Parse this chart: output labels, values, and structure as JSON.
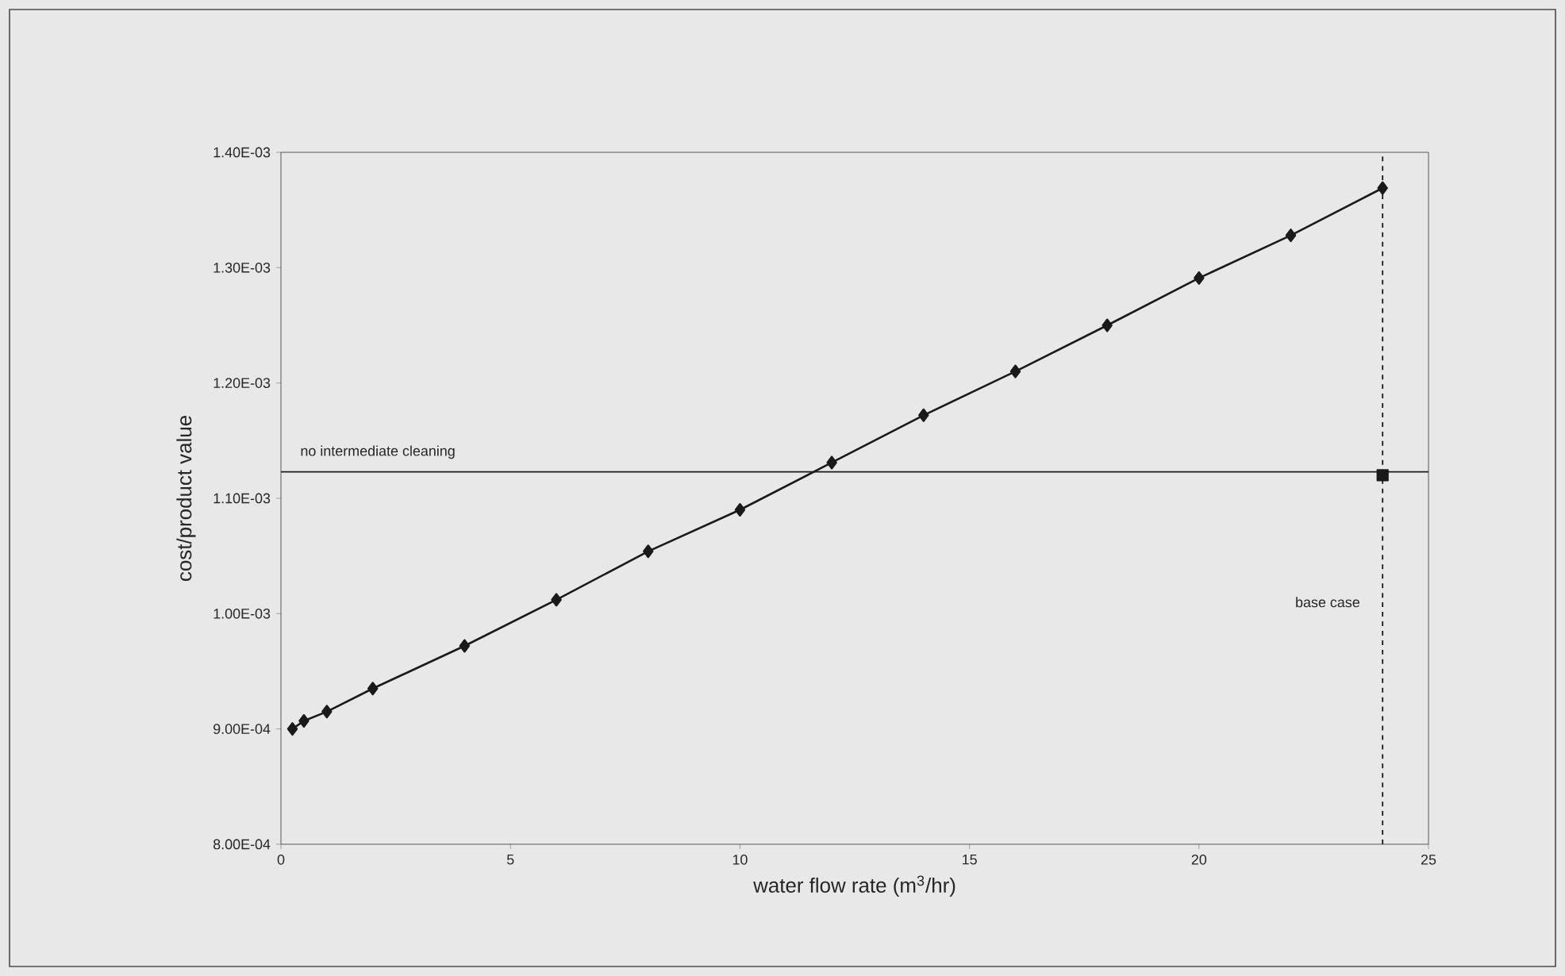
{
  "chart_data": {
    "type": "line",
    "xlabel": "water flow rate (m$^{3}$/hr)",
    "ylabel": "cost/product value",
    "xlim": [
      0,
      25
    ],
    "xticks": [
      0,
      5,
      10,
      15,
      20,
      25
    ],
    "ylim": [
      0.0008,
      0.0014
    ],
    "yticks": [
      {
        "value": 0.0008,
        "label": "8.00E-04"
      },
      {
        "value": 0.0009,
        "label": "9.00E-04"
      },
      {
        "value": 0.001,
        "label": "1.00E-03"
      },
      {
        "value": 0.0011,
        "label": "1.10E-03"
      },
      {
        "value": 0.0012,
        "label": "1.20E-03"
      },
      {
        "value": 0.0013,
        "label": "1.30E-03"
      },
      {
        "value": 0.0014,
        "label": "1.40E-03"
      }
    ],
    "series": [
      {
        "color": "#1a1a1a",
        "marker": "diamond",
        "line_style": "solid",
        "x": [
          0.25,
          0.5,
          1,
          2,
          4,
          6,
          8,
          10,
          12,
          14,
          16,
          18,
          20,
          22,
          24
        ],
        "values": [
          0.0009,
          0.000907,
          0.000915,
          0.000935,
          0.000972,
          0.001012,
          0.001054,
          0.00109,
          0.001131,
          0.001172,
          0.00121,
          0.00125,
          0.001291,
          0.001328,
          0.001369
        ]
      },
      {
        "type": "scatter",
        "color": "#1a1a1a",
        "marker": "square",
        "x": [
          24
        ],
        "values": [
          0.00112
        ]
      }
    ],
    "ref_lines": [
      {
        "axis": "y",
        "value": 0.001123,
        "label": "no intermediate cleaning",
        "color": "#1a1a1a",
        "line_style": "solid"
      },
      {
        "axis": "x",
        "value": 24,
        "label": "base case",
        "color": "#1a1a1a",
        "line_style": "dashed"
      }
    ]
  }
}
